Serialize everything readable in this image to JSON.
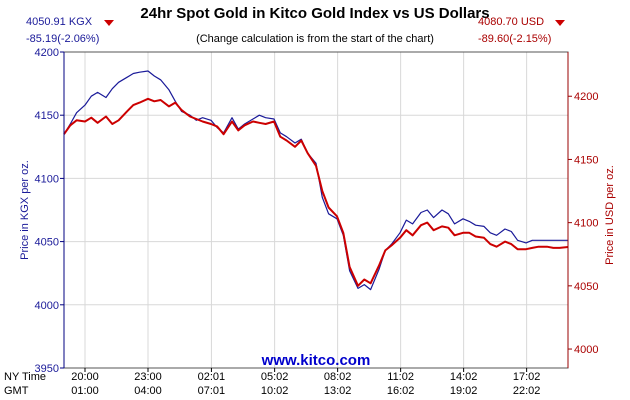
{
  "header": {
    "title": "24hr Spot Gold in Kitco Gold Index vs US Dollars",
    "subtitle": "(Change calculation is from the start of the chart)",
    "kgx_price": "4050.91 KGX",
    "kgx_change": "-85.19(-2.06%)",
    "usd_price": "4080.70 USD",
    "usd_change": "-89.60(-2.15%)"
  },
  "footer": {
    "site": "www.kitco.com"
  },
  "colors": {
    "kgx": "#1a1a99",
    "usd": "#cc0000",
    "grid": "#d8d8d8",
    "axis_left": "#000080",
    "axis_right": "#990000",
    "footer": "#0000cc"
  },
  "chart_data": {
    "type": "line",
    "title": "24hr Spot Gold in Kitco Gold Index vs US Dollars",
    "subtitle": "(Change calculation is from the start of the chart)",
    "ylabel_left": "Price in KGX per oz.",
    "ylabel_right": "Price in USD per oz.",
    "ylim_left": [
      3950,
      4200
    ],
    "ylim_right": [
      3985,
      4235
    ],
    "yticks_left": [
      3950,
      4000,
      4050,
      4100,
      4150,
      4200
    ],
    "yticks_right": [
      4000,
      4050,
      4100,
      4150,
      4200
    ],
    "xlim": [
      0,
      24
    ],
    "grid": true,
    "row_labels": [
      "NY Time",
      "GMT"
    ],
    "x_ticks": [
      {
        "x": 1,
        "ny": "20:00",
        "gmt": "01:00"
      },
      {
        "x": 4,
        "ny": "23:00",
        "gmt": "04:00"
      },
      {
        "x": 7.02,
        "ny": "02:01",
        "gmt": "07:01"
      },
      {
        "x": 10.03,
        "ny": "05:02",
        "gmt": "10:02"
      },
      {
        "x": 13.03,
        "ny": "08:02",
        "gmt": "13:02"
      },
      {
        "x": 16.03,
        "ny": "11:02",
        "gmt": "16:02"
      },
      {
        "x": 19.03,
        "ny": "14:02",
        "gmt": "19:02"
      },
      {
        "x": 22.03,
        "ny": "17:02",
        "gmt": "22:02"
      }
    ],
    "series": [
      {
        "name": "KGX",
        "axis": "left",
        "x": [
          0,
          0.3,
          0.6,
          1.0,
          1.3,
          1.6,
          2.0,
          2.3,
          2.6,
          3.0,
          3.3,
          3.6,
          4.0,
          4.3,
          4.6,
          5.0,
          5.3,
          5.6,
          6.0,
          6.3,
          6.6,
          7.0,
          7.3,
          7.6,
          8.0,
          8.3,
          8.6,
          9.0,
          9.3,
          9.6,
          10.0,
          10.3,
          10.6,
          11.0,
          11.3,
          11.6,
          12.0,
          12.3,
          12.6,
          13.0,
          13.3,
          13.6,
          14.0,
          14.3,
          14.6,
          15.0,
          15.3,
          15.6,
          16.0,
          16.3,
          16.6,
          17.0,
          17.3,
          17.6,
          18.0,
          18.3,
          18.6,
          19.0,
          19.3,
          19.6,
          20.0,
          20.3,
          20.6,
          21.0,
          21.3,
          21.6,
          22.0,
          22.3,
          22.6,
          23.0,
          23.3,
          23.6,
          24.0
        ],
        "values": [
          4135,
          4143,
          4152,
          4158,
          4165,
          4168,
          4164,
          4171,
          4176,
          4180,
          4183,
          4184,
          4185,
          4181,
          4178,
          4170,
          4161,
          4153,
          4150,
          4146,
          4148,
          4146,
          4140,
          4136,
          4148,
          4139,
          4143,
          4147,
          4150,
          4148,
          4147,
          4136,
          4133,
          4128,
          4131,
          4120,
          4112,
          4085,
          4072,
          4068,
          4055,
          4027,
          4013,
          4016,
          4012,
          4028,
          4043,
          4048,
          4057,
          4067,
          4064,
          4073,
          4075,
          4069,
          4075,
          4072,
          4064,
          4068,
          4066,
          4063,
          4062,
          4057,
          4055,
          4060,
          4058,
          4051,
          4049,
          4051,
          4051,
          4051,
          4051,
          4051,
          4051
        ]
      },
      {
        "name": "USD",
        "axis": "right",
        "x": [
          0,
          0.3,
          0.6,
          1.0,
          1.3,
          1.6,
          2.0,
          2.3,
          2.6,
          3.0,
          3.3,
          3.6,
          4.0,
          4.3,
          4.6,
          5.0,
          5.3,
          5.6,
          6.0,
          6.3,
          6.6,
          7.0,
          7.3,
          7.6,
          8.0,
          8.3,
          8.6,
          9.0,
          9.3,
          9.6,
          10.0,
          10.3,
          10.6,
          11.0,
          11.3,
          11.6,
          12.0,
          12.3,
          12.6,
          13.0,
          13.3,
          13.6,
          14.0,
          14.3,
          14.6,
          15.0,
          15.3,
          15.6,
          16.0,
          16.3,
          16.6,
          17.0,
          17.3,
          17.6,
          18.0,
          18.3,
          18.6,
          19.0,
          19.3,
          19.6,
          20.0,
          20.3,
          20.6,
          21.0,
          21.3,
          21.6,
          22.0,
          22.3,
          22.6,
          23.0,
          23.3,
          23.6,
          24.0
        ],
        "values": [
          4170,
          4177,
          4181,
          4180,
          4183,
          4179,
          4184,
          4178,
          4181,
          4188,
          4193,
          4195,
          4198,
          4196,
          4197,
          4192,
          4195,
          4189,
          4184,
          4182,
          4180,
          4178,
          4176,
          4170,
          4180,
          4173,
          4177,
          4180,
          4179,
          4178,
          4180,
          4168,
          4165,
          4160,
          4165,
          4155,
          4145,
          4125,
          4112,
          4105,
          4092,
          4065,
          4050,
          4055,
          4052,
          4066,
          4078,
          4082,
          4088,
          4094,
          4090,
          4098,
          4100,
          4094,
          4097,
          4096,
          4090,
          4092,
          4092,
          4089,
          4088,
          4083,
          4081,
          4085,
          4083,
          4079,
          4079,
          4080,
          4081,
          4081,
          4080,
          4080,
          4080.7
        ]
      }
    ]
  }
}
